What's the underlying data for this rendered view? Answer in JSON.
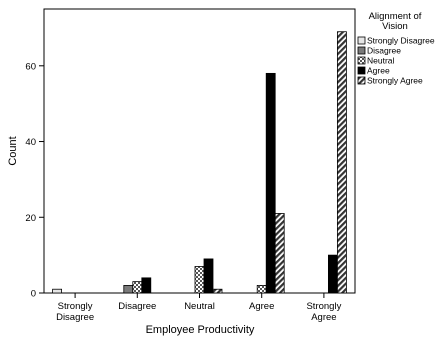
{
  "chart_data": {
    "type": "bar",
    "xlabel": "Employee Productivity",
    "ylabel": "Count",
    "ylim": [
      0,
      75
    ],
    "yticks": [
      0,
      20,
      40,
      60
    ],
    "grid": false,
    "legend_position": "top-right",
    "legend_title": [
      "Alignment of",
      "Vision"
    ],
    "categories": [
      [
        "Strongly",
        "Disagree"
      ],
      [
        "Disagree"
      ],
      [
        "Neutral"
      ],
      [
        "Agree"
      ],
      [
        "Strongly",
        "Agree"
      ]
    ],
    "series": [
      {
        "name": "Strongly Disagree",
        "values": [
          1,
          0,
          0,
          0,
          0
        ],
        "fill": "#e6e6e6"
      },
      {
        "name": "Disagree",
        "values": [
          0,
          2,
          0,
          0,
          0
        ],
        "fill": "#7a7a7a"
      },
      {
        "name": "Neutral",
        "values": [
          0,
          3,
          7,
          2,
          0
        ],
        "fill": "url(#pat-check)"
      },
      {
        "name": "Agree",
        "values": [
          0,
          4,
          9,
          58,
          10
        ],
        "fill": "#000000"
      },
      {
        "name": "Strongly Agree",
        "values": [
          0,
          0,
          1,
          21,
          69
        ],
        "fill": "url(#pat-diag)"
      }
    ]
  }
}
